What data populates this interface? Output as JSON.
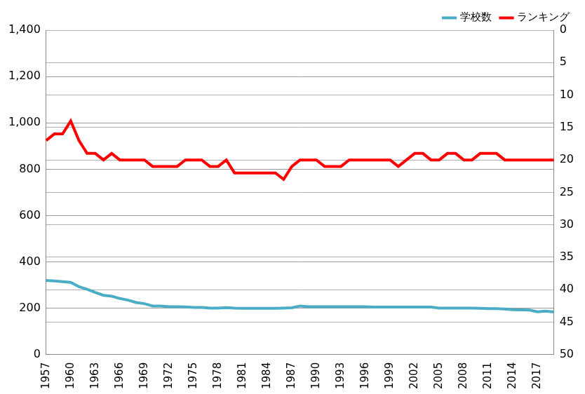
{
  "chart_data": {
    "type": "line",
    "categories": [
      "1957",
      null,
      null,
      "1960",
      null,
      null,
      "1963",
      null,
      null,
      "1966",
      null,
      null,
      "1969",
      null,
      null,
      "1972",
      null,
      null,
      "1975",
      null,
      null,
      "1978",
      null,
      null,
      "1981",
      null,
      null,
      "1984",
      null,
      null,
      "1987",
      null,
      null,
      "1990",
      null,
      null,
      "1993",
      null,
      null,
      "1996",
      null,
      null,
      "1999",
      null,
      null,
      "2002",
      null,
      null,
      "2005",
      null,
      null,
      "2008",
      null,
      null,
      "2011",
      null,
      null,
      "2014",
      null,
      null,
      "2017",
      null,
      null
    ],
    "series": [
      {
        "name": "学校数",
        "color": "#4bacc6",
        "axis": "y",
        "values": [
          320,
          318,
          315,
          312,
          293,
          282,
          268,
          256,
          252,
          242,
          235,
          225,
          220,
          210,
          210,
          207,
          207,
          206,
          204,
          204,
          201,
          201,
          203,
          201,
          200,
          200,
          200,
          200,
          200,
          201,
          202,
          210,
          207,
          207,
          207,
          207,
          207,
          207,
          207,
          207,
          205,
          205,
          205,
          205,
          205,
          205,
          205,
          205,
          201,
          201,
          201,
          201,
          201,
          200,
          198,
          198,
          197,
          194,
          193,
          192,
          185,
          188,
          184
        ]
      },
      {
        "name": "ランキング",
        "color": "#ff0000",
        "axis": "y2",
        "values": [
          17,
          16,
          16,
          14,
          17,
          19,
          19,
          20,
          19,
          20,
          20,
          20,
          20,
          21,
          21,
          21,
          21,
          20,
          20,
          20,
          21,
          21,
          20,
          22,
          22,
          22,
          22,
          22,
          22,
          23,
          21,
          20,
          20,
          20,
          21,
          21,
          21,
          20,
          20,
          20,
          20,
          20,
          20,
          21,
          20,
          19,
          19,
          20,
          20,
          19,
          19,
          20,
          20,
          19,
          19,
          19,
          20,
          20,
          20,
          20,
          20,
          20,
          20
        ]
      }
    ],
    "ylim": [
      0,
      1400
    ],
    "yticks": [
      0,
      200,
      400,
      600,
      800,
      {
        "value": 1000,
        "label": "1,000"
      },
      {
        "value": 1200,
        "label": "1,200"
      },
      {
        "value": 1400,
        "label": "1,400"
      }
    ],
    "y2lim": [
      50,
      0
    ],
    "y2ticks": [
      0,
      5,
      10,
      15,
      20,
      25,
      30,
      35,
      40,
      45,
      50
    ],
    "grid": true,
    "legend": "top-right"
  }
}
